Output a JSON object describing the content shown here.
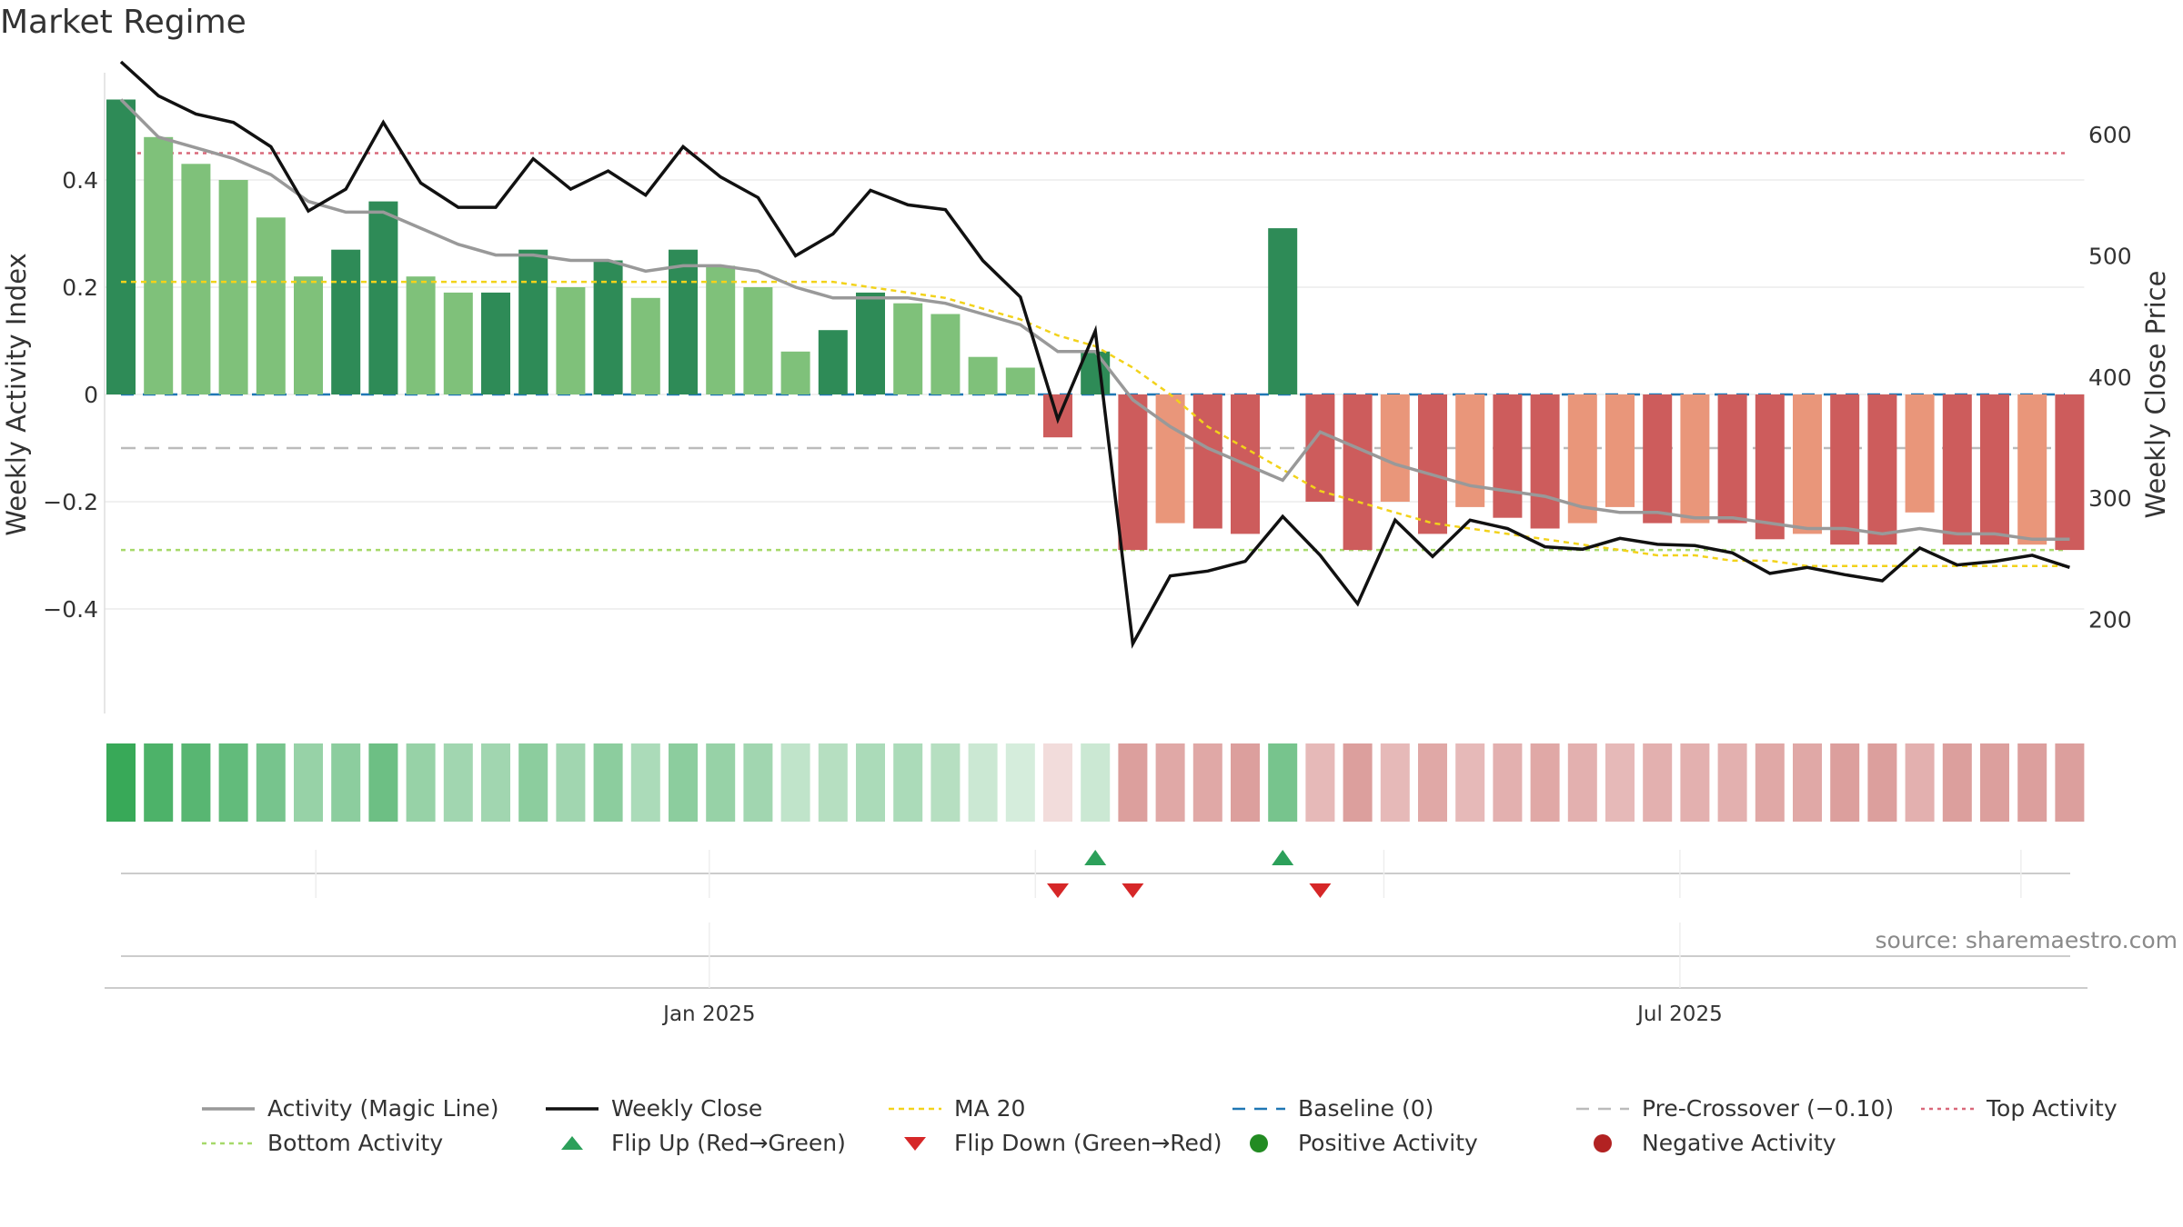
{
  "title": "Market Regime",
  "source": "source: sharemaestro.com",
  "colors": {
    "strong_green": "#2e8b57",
    "light_green": "#7fc17a",
    "strong_red": "#cd5c5c",
    "light_red": "#e9967a",
    "magic": "#999999",
    "close": "#111111",
    "ma20": "#f2d21b",
    "baseline": "#1f77b4",
    "pre": "#bbbbbb",
    "top": "#d9687a",
    "bottom": "#a6d96a",
    "flip_up": "#2ca05a",
    "flip_down": "#d62728",
    "positive": "#228b22",
    "negative": "#b22222"
  },
  "chart_data": {
    "type": "bar",
    "title": "Market Regime",
    "ylabel_left": "Weekly Activity Index",
    "ylabel_right": "Weekly Close Price",
    "ylim_left": [
      -0.6,
      0.6
    ],
    "ylim_right": [
      160,
      660
    ],
    "left_ticks": [
      {
        "v": 0.4,
        "label": "0.4"
      },
      {
        "v": 0.2,
        "label": "0.2"
      },
      {
        "v": 0,
        "label": "0"
      },
      {
        "v": -0.2,
        "label": "−0.2"
      },
      {
        "v": -0.4,
        "label": "−0.4"
      }
    ],
    "right_ticks": [
      600,
      500,
      400,
      300,
      200
    ],
    "x_ticks": [
      {
        "index": 15.7,
        "label": "Jan 2025"
      },
      {
        "index": 41.6,
        "label": "Jul 2025"
      }
    ],
    "bars": [
      0.55,
      0.48,
      0.43,
      0.4,
      0.33,
      0.22,
      0.27,
      0.36,
      0.22,
      0.19,
      0.19,
      0.27,
      0.2,
      0.25,
      0.18,
      0.27,
      0.24,
      0.2,
      0.08,
      0.12,
      0.19,
      0.17,
      0.15,
      0.07,
      0.05,
      -0.08,
      0.08,
      -0.29,
      -0.24,
      -0.25,
      -0.26,
      0.31,
      -0.2,
      -0.29,
      -0.2,
      -0.26,
      -0.21,
      -0.23,
      -0.25,
      -0.24,
      -0.21,
      -0.24,
      -0.24,
      -0.24,
      -0.27,
      -0.26,
      -0.28,
      -0.28,
      -0.22,
      -0.28,
      -0.28,
      -0.28,
      -0.29
    ],
    "bar_strength": [
      "strong",
      "light",
      "light",
      "light",
      "light",
      "light",
      "strong",
      "strong",
      "light",
      "light",
      "strong",
      "strong",
      "light",
      "strong",
      "light",
      "strong",
      "light",
      "light",
      "light",
      "strong",
      "strong",
      "light",
      "light",
      "light",
      "light",
      "strong",
      "strong",
      "strong",
      "light",
      "strong",
      "strong",
      "strong",
      "strong",
      "strong",
      "light",
      "strong",
      "light",
      "strong",
      "strong",
      "light",
      "light",
      "strong",
      "light",
      "strong",
      "strong",
      "light",
      "strong",
      "strong",
      "light",
      "strong",
      "strong",
      "light",
      "strong"
    ],
    "magic_line": [
      0.55,
      0.48,
      0.46,
      0.44,
      0.41,
      0.36,
      0.34,
      0.34,
      0.31,
      0.28,
      0.26,
      0.26,
      0.25,
      0.25,
      0.23,
      0.24,
      0.24,
      0.23,
      0.2,
      0.18,
      0.18,
      0.18,
      0.17,
      0.15,
      0.13,
      0.08,
      0.08,
      -0.01,
      -0.06,
      -0.1,
      -0.13,
      -0.16,
      -0.07,
      -0.1,
      -0.13,
      -0.15,
      -0.17,
      -0.18,
      -0.19,
      -0.21,
      -0.22,
      -0.22,
      -0.23,
      -0.23,
      -0.24,
      -0.25,
      -0.25,
      -0.26,
      -0.25,
      -0.26,
      -0.26,
      -0.27,
      -0.27
    ],
    "weekly_close": [
      660,
      632,
      617,
      610,
      590,
      537,
      555,
      610,
      560,
      540,
      540,
      580,
      555,
      570,
      550,
      590,
      565,
      548,
      500,
      518,
      554,
      542,
      538,
      496,
      466,
      365,
      438,
      180,
      236,
      240,
      248,
      285,
      253,
      213,
      282,
      252,
      282,
      275,
      260,
      258,
      267,
      262,
      261,
      255,
      238,
      243,
      237,
      232,
      259,
      245,
      248,
      253,
      243
    ],
    "ma20": [
      0.21,
      0.21,
      0.21,
      0.21,
      0.21,
      0.21,
      0.21,
      0.21,
      0.21,
      0.21,
      0.21,
      0.21,
      0.21,
      0.21,
      0.21,
      0.21,
      0.21,
      0.21,
      0.21,
      0.21,
      0.2,
      0.19,
      0.18,
      0.16,
      0.14,
      0.11,
      0.09,
      0.05,
      0.0,
      -0.06,
      -0.1,
      -0.14,
      -0.18,
      -0.2,
      -0.22,
      -0.24,
      -0.25,
      -0.26,
      -0.27,
      -0.28,
      -0.29,
      -0.3,
      -0.3,
      -0.31,
      -0.31,
      -0.32,
      -0.32,
      -0.32,
      -0.32,
      -0.32,
      -0.32,
      -0.32,
      -0.32
    ],
    "baseline": 0,
    "pre_crossover": -0.1,
    "top_activity": 0.45,
    "bottom_activity": -0.29,
    "flip_up_indices": [
      26,
      31
    ],
    "flip_down_indices": [
      25,
      27,
      32
    ],
    "strip_intensity": [
      0.95,
      0.85,
      0.8,
      0.75,
      0.65,
      0.5,
      0.55,
      0.7,
      0.5,
      0.45,
      0.45,
      0.55,
      0.45,
      0.55,
      0.4,
      0.55,
      0.5,
      0.45,
      0.3,
      0.35,
      0.4,
      0.4,
      0.35,
      0.25,
      0.2,
      0.2,
      0.25,
      0.55,
      0.5,
      0.5,
      0.55,
      0.65,
      0.4,
      0.55,
      0.4,
      0.5,
      0.4,
      0.45,
      0.5,
      0.45,
      0.4,
      0.45,
      0.45,
      0.45,
      0.5,
      0.5,
      0.55,
      0.55,
      0.45,
      0.55,
      0.55,
      0.55,
      0.55
    ],
    "legend": [
      {
        "key": "magic",
        "label": "Activity (Magic Line)"
      },
      {
        "key": "close",
        "label": "Weekly Close"
      },
      {
        "key": "ma20",
        "label": "MA 20"
      },
      {
        "key": "baseline",
        "label": "Baseline (0)"
      },
      {
        "key": "pre",
        "label": "Pre-Crossover (−0.10)"
      },
      {
        "key": "top",
        "label": "Top Activity"
      },
      {
        "key": "bottom",
        "label": "Bottom Activity"
      },
      {
        "key": "flip_up",
        "label": "Flip Up (Red→Green)"
      },
      {
        "key": "flip_down",
        "label": "Flip Down (Green→Red)"
      },
      {
        "key": "positive",
        "label": "Positive Activity"
      },
      {
        "key": "negative",
        "label": "Negative Activity"
      }
    ]
  }
}
